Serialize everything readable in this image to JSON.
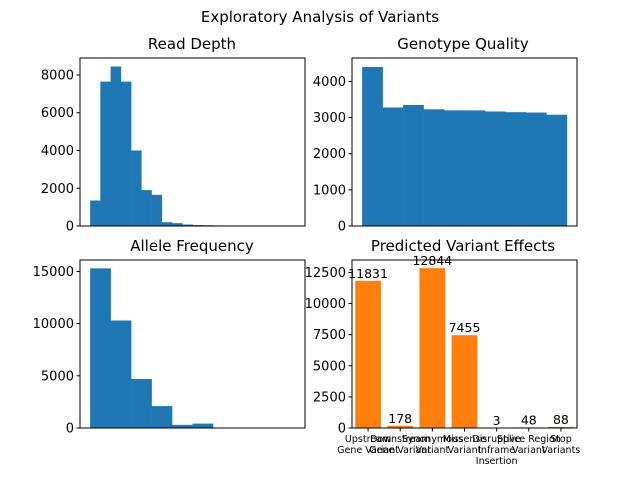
{
  "figure": {
    "title": "Exploratory Analysis of Variants"
  },
  "chart_data": [
    {
      "id": "read-depth",
      "type": "bar",
      "title": "Read Depth",
      "histogram": true,
      "values": [
        1350,
        7650,
        8450,
        7650,
        4000,
        1900,
        1650,
        200,
        150,
        80,
        50,
        40,
        30,
        20,
        15,
        15,
        10,
        10,
        10,
        10
      ],
      "ylim": [
        0,
        8900
      ],
      "yticks": [
        0,
        2000,
        4000,
        6000,
        8000
      ],
      "color": "#1f77b4",
      "grid": false
    },
    {
      "id": "genotype-quality",
      "type": "bar",
      "title": "Genotype Quality",
      "histogram": true,
      "values": [
        4400,
        3280,
        3350,
        3230,
        3200,
        3200,
        3170,
        3150,
        3140,
        3080
      ],
      "ylim": [
        0,
        4650
      ],
      "yticks": [
        0,
        1000,
        2000,
        3000,
        4000
      ],
      "color": "#1f77b4",
      "grid": false
    },
    {
      "id": "allele-frequency",
      "type": "bar",
      "title": "Allele Frequency",
      "histogram": true,
      "values": [
        15300,
        10300,
        4700,
        2100,
        300,
        420,
        0,
        0,
        0,
        0
      ],
      "ylim": [
        0,
        16100
      ],
      "yticks": [
        0,
        5000,
        10000,
        15000
      ],
      "color": "#1f77b4",
      "grid": false
    },
    {
      "id": "predicted-variant-effects",
      "type": "bar",
      "title": "Predicted Variant Effects",
      "categories": [
        [
          "Upstream",
          "Gene Variant"
        ],
        [
          "Downstream",
          "Gene Variant"
        ],
        [
          "Synonymous",
          "Variant"
        ],
        [
          "Missense",
          "Variant"
        ],
        [
          "Disruptive",
          "Inframe",
          "Insertion"
        ],
        [
          "Splice Region",
          "Variant"
        ],
        [
          "Stop",
          "Variants"
        ]
      ],
      "values": [
        11831,
        178,
        12844,
        7455,
        3,
        48,
        88
      ],
      "value_labels": [
        "11831",
        "178",
        "12844",
        "7455",
        "3",
        "48",
        "88"
      ],
      "ylim": [
        0,
        13500
      ],
      "yticks": [
        0,
        2500,
        5000,
        7500,
        10000,
        12500
      ],
      "color": "#ff7f0e",
      "grid": false
    }
  ]
}
